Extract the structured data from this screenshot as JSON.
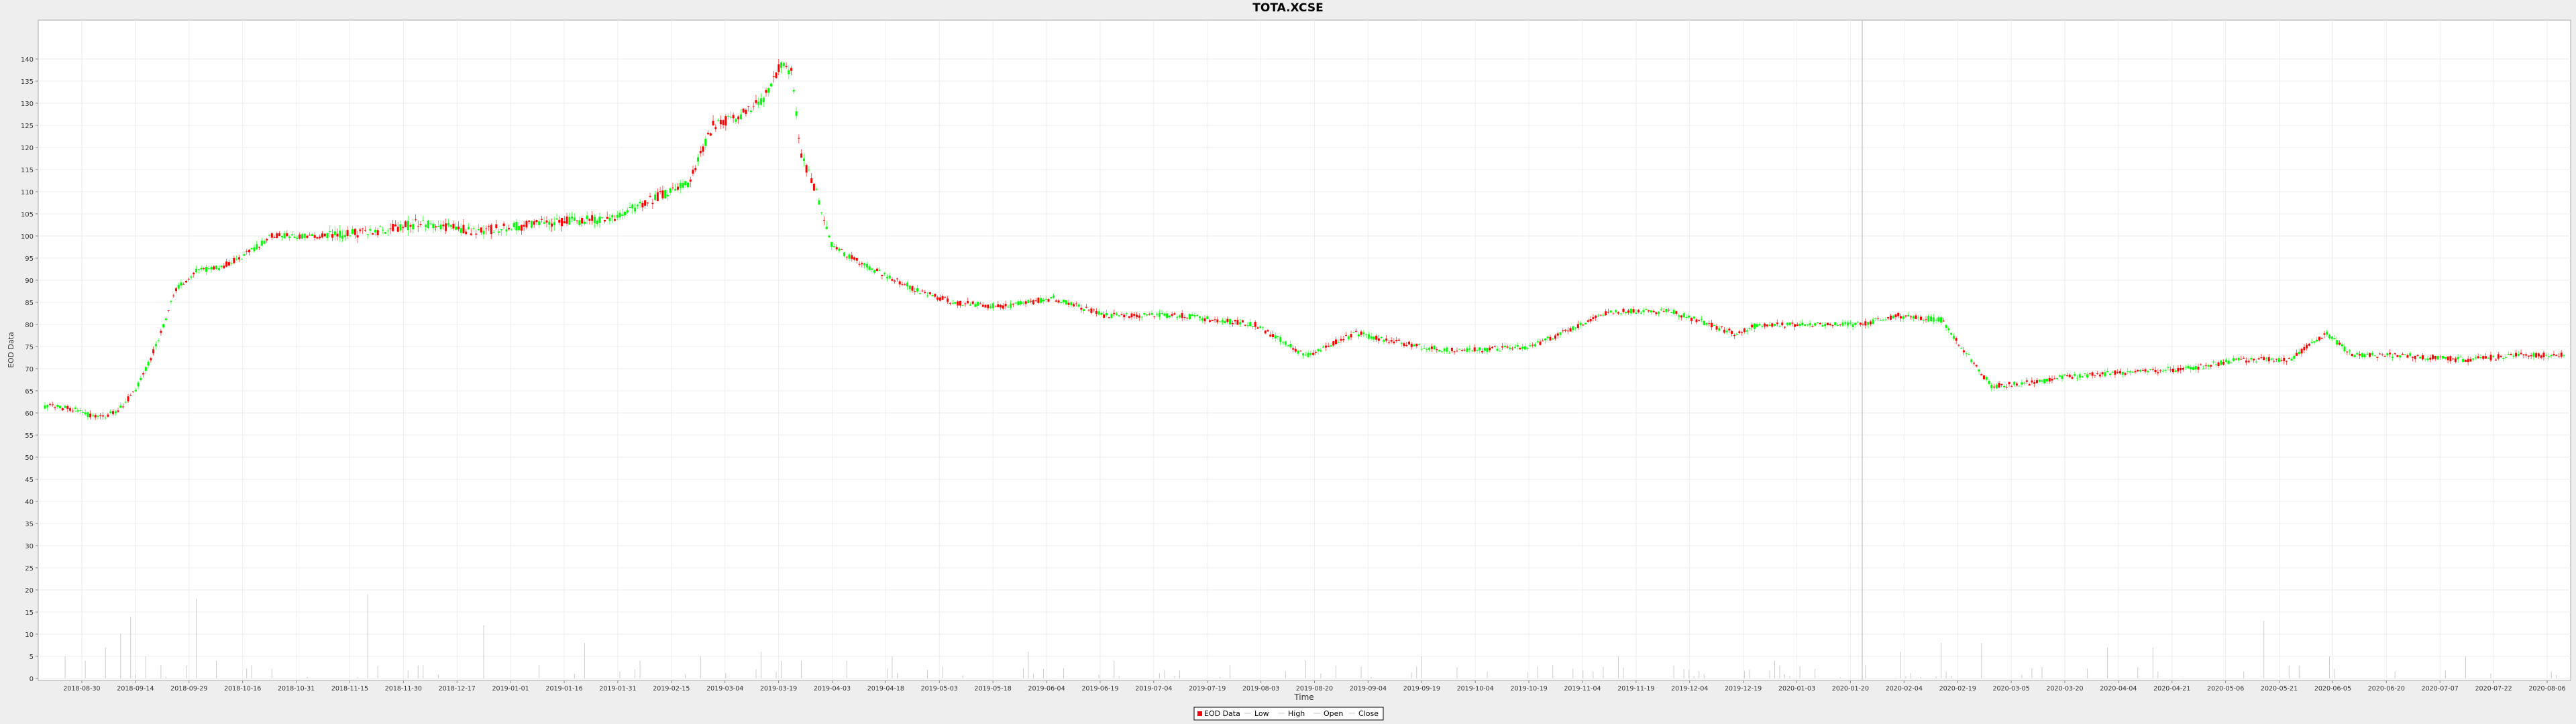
{
  "chart_data": {
    "type": "candlestick",
    "title": "TOTA.XCSE",
    "xlabel": "Time",
    "ylabel": "EOD Data",
    "ylim": [
      0,
      144
    ],
    "yticks": [
      0,
      5,
      10,
      15,
      20,
      25,
      30,
      35,
      40,
      45,
      50,
      55,
      60,
      65,
      70,
      75,
      80,
      85,
      90,
      95,
      100,
      105,
      110,
      115,
      120,
      125,
      130,
      135,
      140
    ],
    "x_tick_labels": [
      "2018-08-30",
      "2018-09-14",
      "2018-09-29",
      "2018-10-16",
      "2018-10-31",
      "2018-11-15",
      "2018-11-30",
      "2018-12-17",
      "2019-01-01",
      "2019-01-16",
      "2019-01-31",
      "2019-02-15",
      "2019-03-04",
      "2019-03-19",
      "2019-04-03",
      "2019-04-18",
      "2019-05-03",
      "2019-05-18",
      "2019-06-04",
      "2019-06-19",
      "2019-07-04",
      "2019-07-19",
      "2019-08-03",
      "2019-08-20",
      "2019-09-04",
      "2019-09-19",
      "2019-10-04",
      "2019-10-19",
      "2019-11-04",
      "2019-11-19",
      "2019-12-04",
      "2019-12-19",
      "2020-01-03",
      "2020-01-20",
      "2020-02-04",
      "2020-02-19",
      "2020-03-05",
      "2020-03-20",
      "2020-04-04",
      "2020-04-21",
      "2020-05-06",
      "2020-05-21",
      "2020-06-05",
      "2020-06-20",
      "2020-07-07",
      "2020-07-22",
      "2020-08-06"
    ],
    "grid": true,
    "legend_position": "bottom",
    "legend": [
      "EOD Data",
      "Low",
      "High",
      "Open",
      "Close"
    ],
    "colors": {
      "up": "#00ff00",
      "down": "#ff0000",
      "volume": "#cccccc",
      "wick": "#bbbbbb",
      "plot_background": "#ffffff",
      "grid": "#eeeeee",
      "crosshair": "#cccccc"
    },
    "price_series_approx": [
      [
        0,
        61.5
      ],
      [
        10,
        61
      ],
      [
        20,
        59
      ],
      [
        28,
        60
      ],
      [
        36,
        65
      ],
      [
        44,
        75
      ],
      [
        52,
        88
      ],
      [
        60,
        92
      ],
      [
        70,
        93
      ],
      [
        80,
        96
      ],
      [
        90,
        100
      ],
      [
        110,
        100
      ],
      [
        130,
        101
      ],
      [
        150,
        103
      ],
      [
        170,
        101
      ],
      [
        200,
        103
      ],
      [
        225,
        104
      ],
      [
        240,
        108
      ],
      [
        255,
        112
      ],
      [
        265,
        125
      ],
      [
        275,
        127
      ],
      [
        285,
        131
      ],
      [
        292,
        139
      ],
      [
        296,
        137
      ],
      [
        300,
        118
      ],
      [
        306,
        110
      ],
      [
        312,
        98
      ],
      [
        320,
        95
      ],
      [
        330,
        92
      ],
      [
        345,
        88
      ],
      [
        360,
        85
      ],
      [
        380,
        84
      ],
      [
        400,
        86
      ],
      [
        420,
        82
      ],
      [
        450,
        82
      ],
      [
        480,
        80
      ],
      [
        500,
        73
      ],
      [
        520,
        78
      ],
      [
        545,
        75
      ],
      [
        560,
        74
      ],
      [
        590,
        75
      ],
      [
        620,
        83
      ],
      [
        645,
        83
      ],
      [
        670,
        78
      ],
      [
        680,
        80
      ],
      [
        700,
        80
      ],
      [
        720,
        80
      ],
      [
        735,
        82
      ],
      [
        752,
        81
      ],
      [
        760,
        75
      ],
      [
        772,
        66
      ],
      [
        790,
        67
      ],
      [
        800,
        68
      ],
      [
        820,
        69
      ],
      [
        850,
        70
      ],
      [
        870,
        72
      ],
      [
        890,
        72
      ],
      [
        905,
        78
      ],
      [
        915,
        73
      ],
      [
        935,
        73
      ],
      [
        960,
        72
      ],
      [
        980,
        73
      ],
      [
        995,
        73
      ]
    ],
    "volume_series_approx": [
      [
        8,
        5
      ],
      [
        16,
        4
      ],
      [
        24,
        7
      ],
      [
        30,
        10
      ],
      [
        34,
        14
      ],
      [
        40,
        5
      ],
      [
        46,
        3
      ],
      [
        60,
        18
      ],
      [
        68,
        4
      ],
      [
        82,
        3
      ],
      [
        128,
        19
      ],
      [
        150,
        3
      ],
      [
        174,
        12
      ],
      [
        196,
        3
      ],
      [
        214,
        8
      ],
      [
        236,
        4
      ],
      [
        260,
        5
      ],
      [
        284,
        6
      ],
      [
        292,
        4
      ],
      [
        300,
        4
      ],
      [
        318,
        4
      ],
      [
        336,
        5
      ],
      [
        390,
        6
      ],
      [
        424,
        4
      ],
      [
        470,
        3
      ],
      [
        500,
        4
      ],
      [
        546,
        5
      ],
      [
        598,
        3
      ],
      [
        624,
        5
      ],
      [
        686,
        4
      ],
      [
        722,
        3
      ],
      [
        736,
        6
      ],
      [
        752,
        8
      ],
      [
        768,
        8
      ],
      [
        818,
        7
      ],
      [
        836,
        7
      ],
      [
        880,
        13
      ],
      [
        906,
        5
      ],
      [
        960,
        5
      ]
    ]
  }
}
